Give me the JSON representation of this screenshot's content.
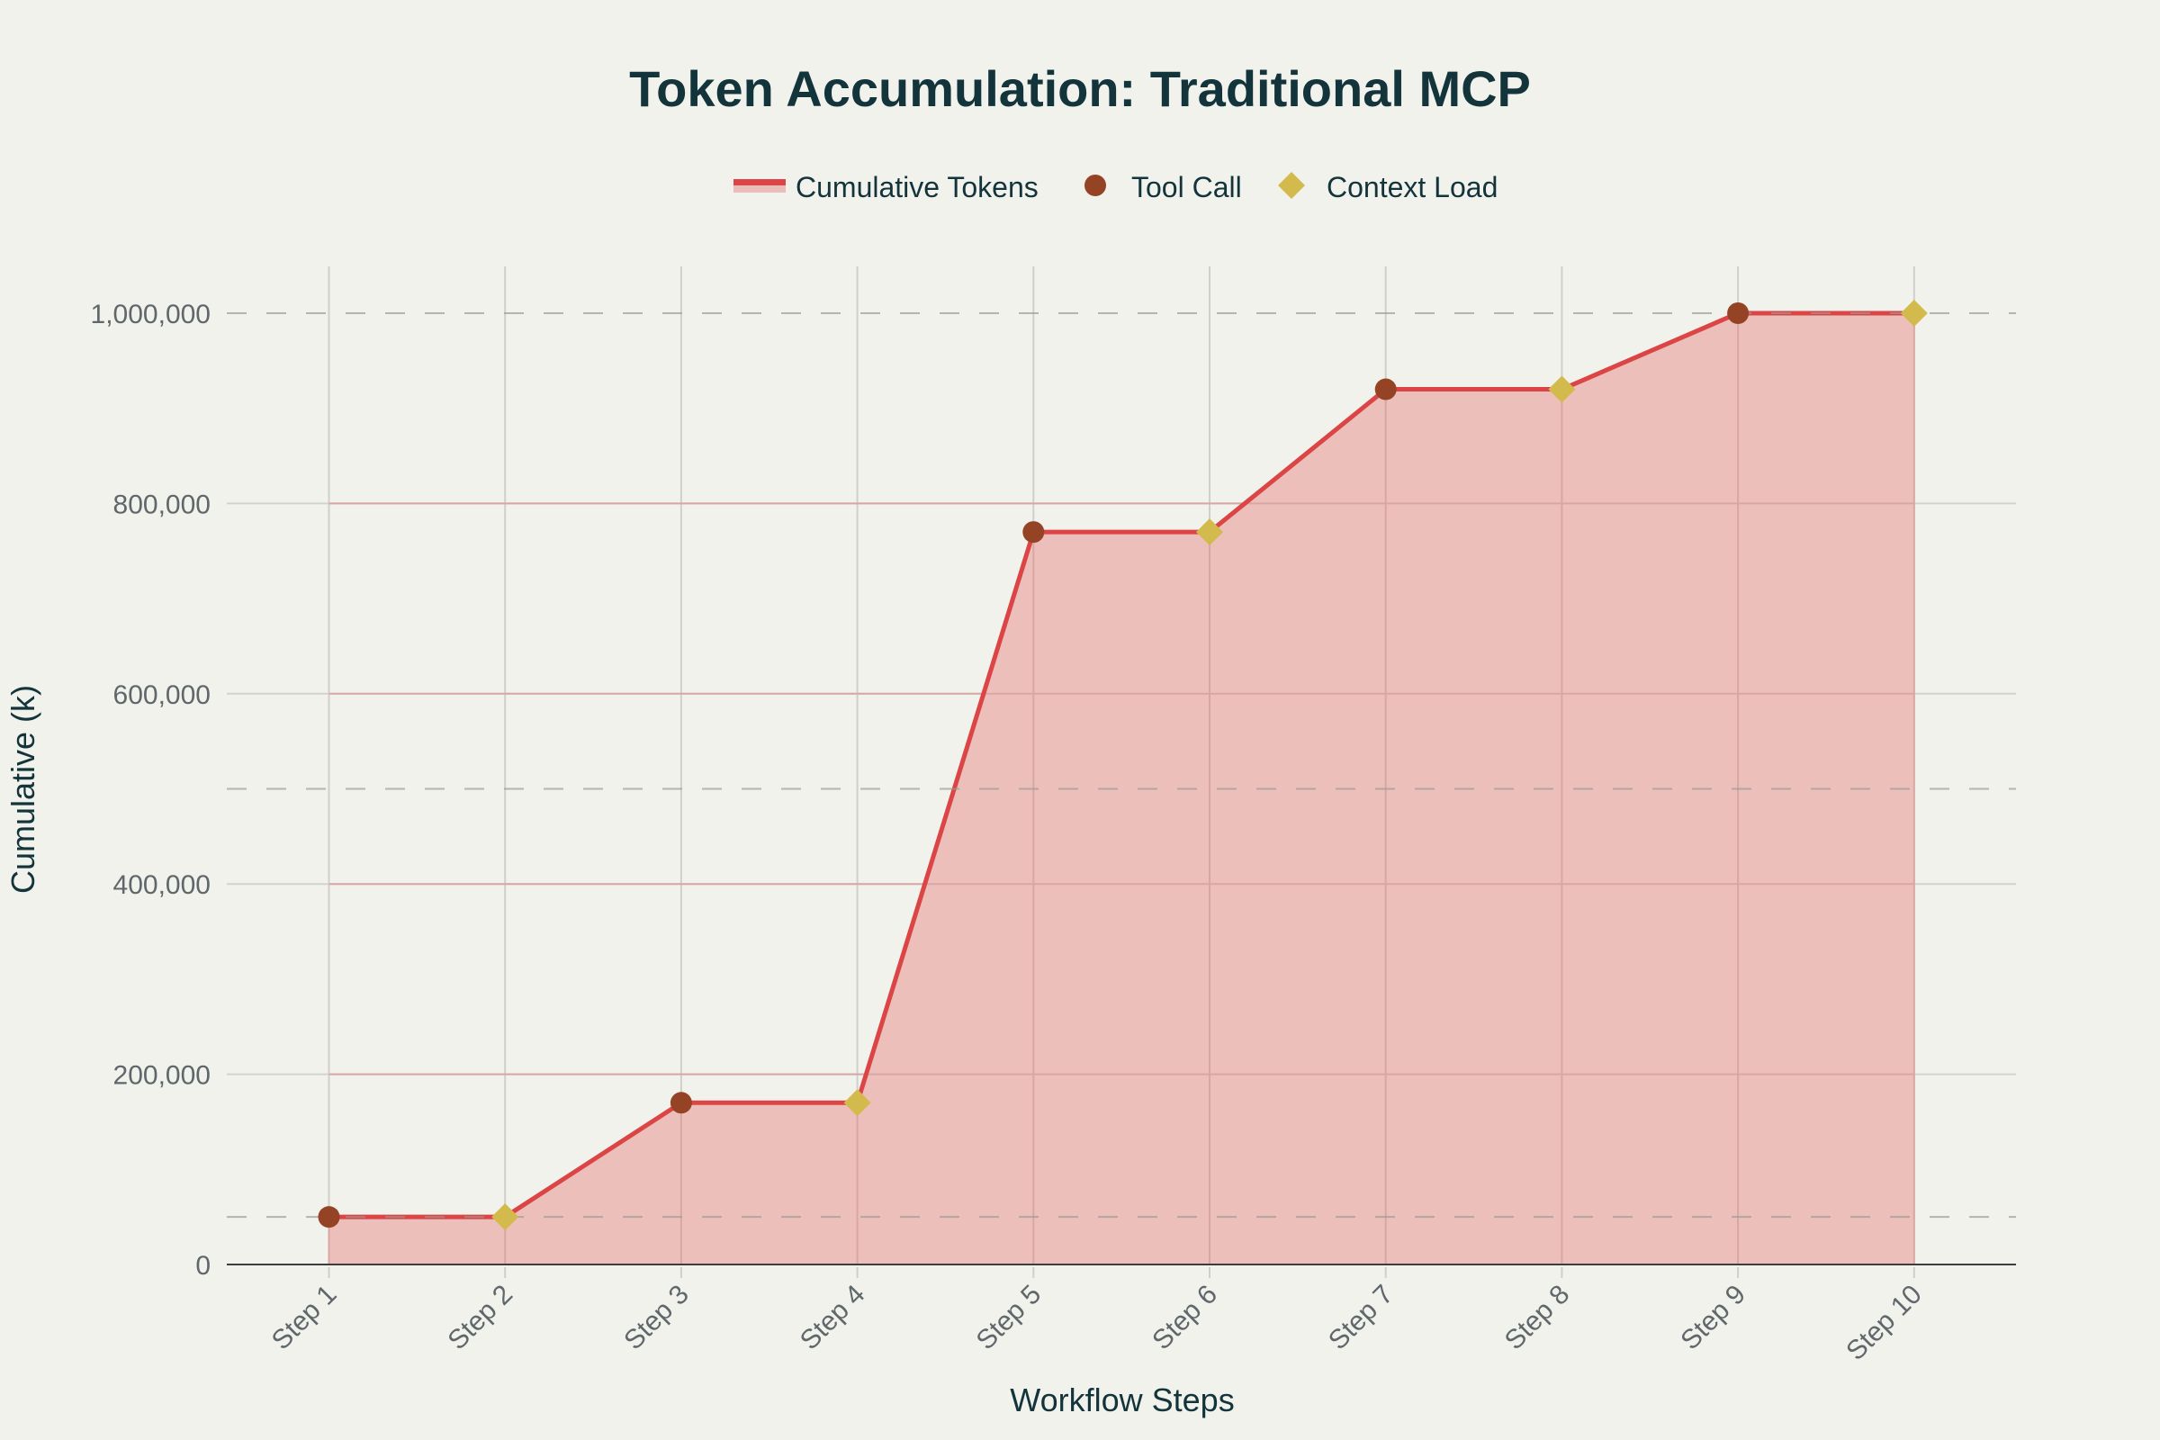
{
  "title": "Token Accumulation: Traditional MCP",
  "legend": {
    "series": "Cumulative Tokens",
    "tool_call": "Tool Call",
    "context_load": "Context Load"
  },
  "axes": {
    "xlabel": "Workflow Steps",
    "ylabel": "Cumulative (k)",
    "yticks": [
      "0",
      "200,000",
      "400,000",
      "600,000",
      "800,000",
      "1,000,000"
    ],
    "xticks": [
      "Step 1",
      "Step 2",
      "Step 3",
      "Step 4",
      "Step 5",
      "Step 6",
      "Step 7",
      "Step 8",
      "Step 9",
      "Step 10"
    ]
  },
  "colors": {
    "line": "#db4545",
    "fill": "#ecbcb8",
    "tool_call": "#944325",
    "context_load": "#d2ba4c",
    "background": "#f2f2ed",
    "text": "#13343b"
  },
  "chart_data": {
    "type": "area",
    "title": "Token Accumulation: Traditional MCP",
    "xlabel": "Workflow Steps",
    "ylabel": "Cumulative (k)",
    "categories": [
      "Step 1",
      "Step 2",
      "Step 3",
      "Step 4",
      "Step 5",
      "Step 6",
      "Step 7",
      "Step 8",
      "Step 9",
      "Step 10"
    ],
    "series": [
      {
        "name": "Cumulative Tokens",
        "values": [
          50000,
          50000,
          170000,
          170000,
          770000,
          770000,
          920000,
          920000,
          1000000,
          1000000
        ]
      }
    ],
    "markers": {
      "Tool Call": [
        "Step 1",
        "Step 3",
        "Step 5",
        "Step 7",
        "Step 9"
      ],
      "Context Load": [
        "Step 2",
        "Step 4",
        "Step 6",
        "Step 8",
        "Step 10"
      ]
    },
    "reference_lines": [
      50000,
      500000,
      1000000
    ],
    "ylim": [
      0,
      1050000
    ],
    "grid": true,
    "legend_position": "top-center"
  }
}
